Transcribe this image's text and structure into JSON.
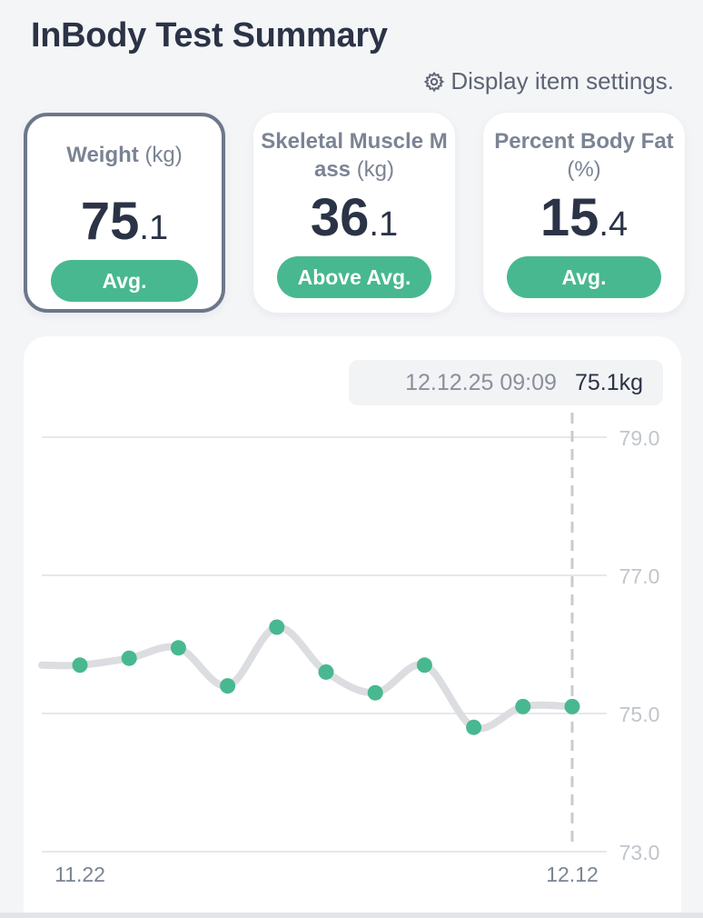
{
  "header": {
    "title": "InBody Test Summary",
    "settings_label": "Display item settings."
  },
  "cards": [
    {
      "label_main": "Weight",
      "label_unit": "(kg)",
      "value_int": "75",
      "value_dec": ".1",
      "badge": "Avg."
    },
    {
      "label_main": "Skeletal Muscle Mass",
      "label_unit": "(kg)",
      "value_int": "36",
      "value_dec": ".1",
      "badge": "Above Avg."
    },
    {
      "label_main": "Percent Body Fat",
      "label_unit": "(%)",
      "value_int": "15",
      "value_dec": ".4",
      "badge": "Avg."
    }
  ],
  "tooltip": {
    "date": "12.12.25 09:09",
    "value": "75.1kg"
  },
  "colors": {
    "accent": "#48b890",
    "line": "#dcdde1",
    "text": "#2b3346"
  },
  "chart_data": {
    "type": "line",
    "y_ticks": [
      "79.0",
      "77.0",
      "75.0",
      "73.0"
    ],
    "ylim": [
      73.0,
      79.0
    ],
    "x_labels": [
      "11.22",
      "12.12"
    ],
    "series": [
      {
        "values": [
          75.7,
          75.8,
          75.95,
          75.4,
          76.25,
          75.6,
          75.3,
          75.7,
          74.8,
          75.1,
          75.1
        ]
      }
    ],
    "leading_value": 75.7,
    "highlight_index": 10
  }
}
